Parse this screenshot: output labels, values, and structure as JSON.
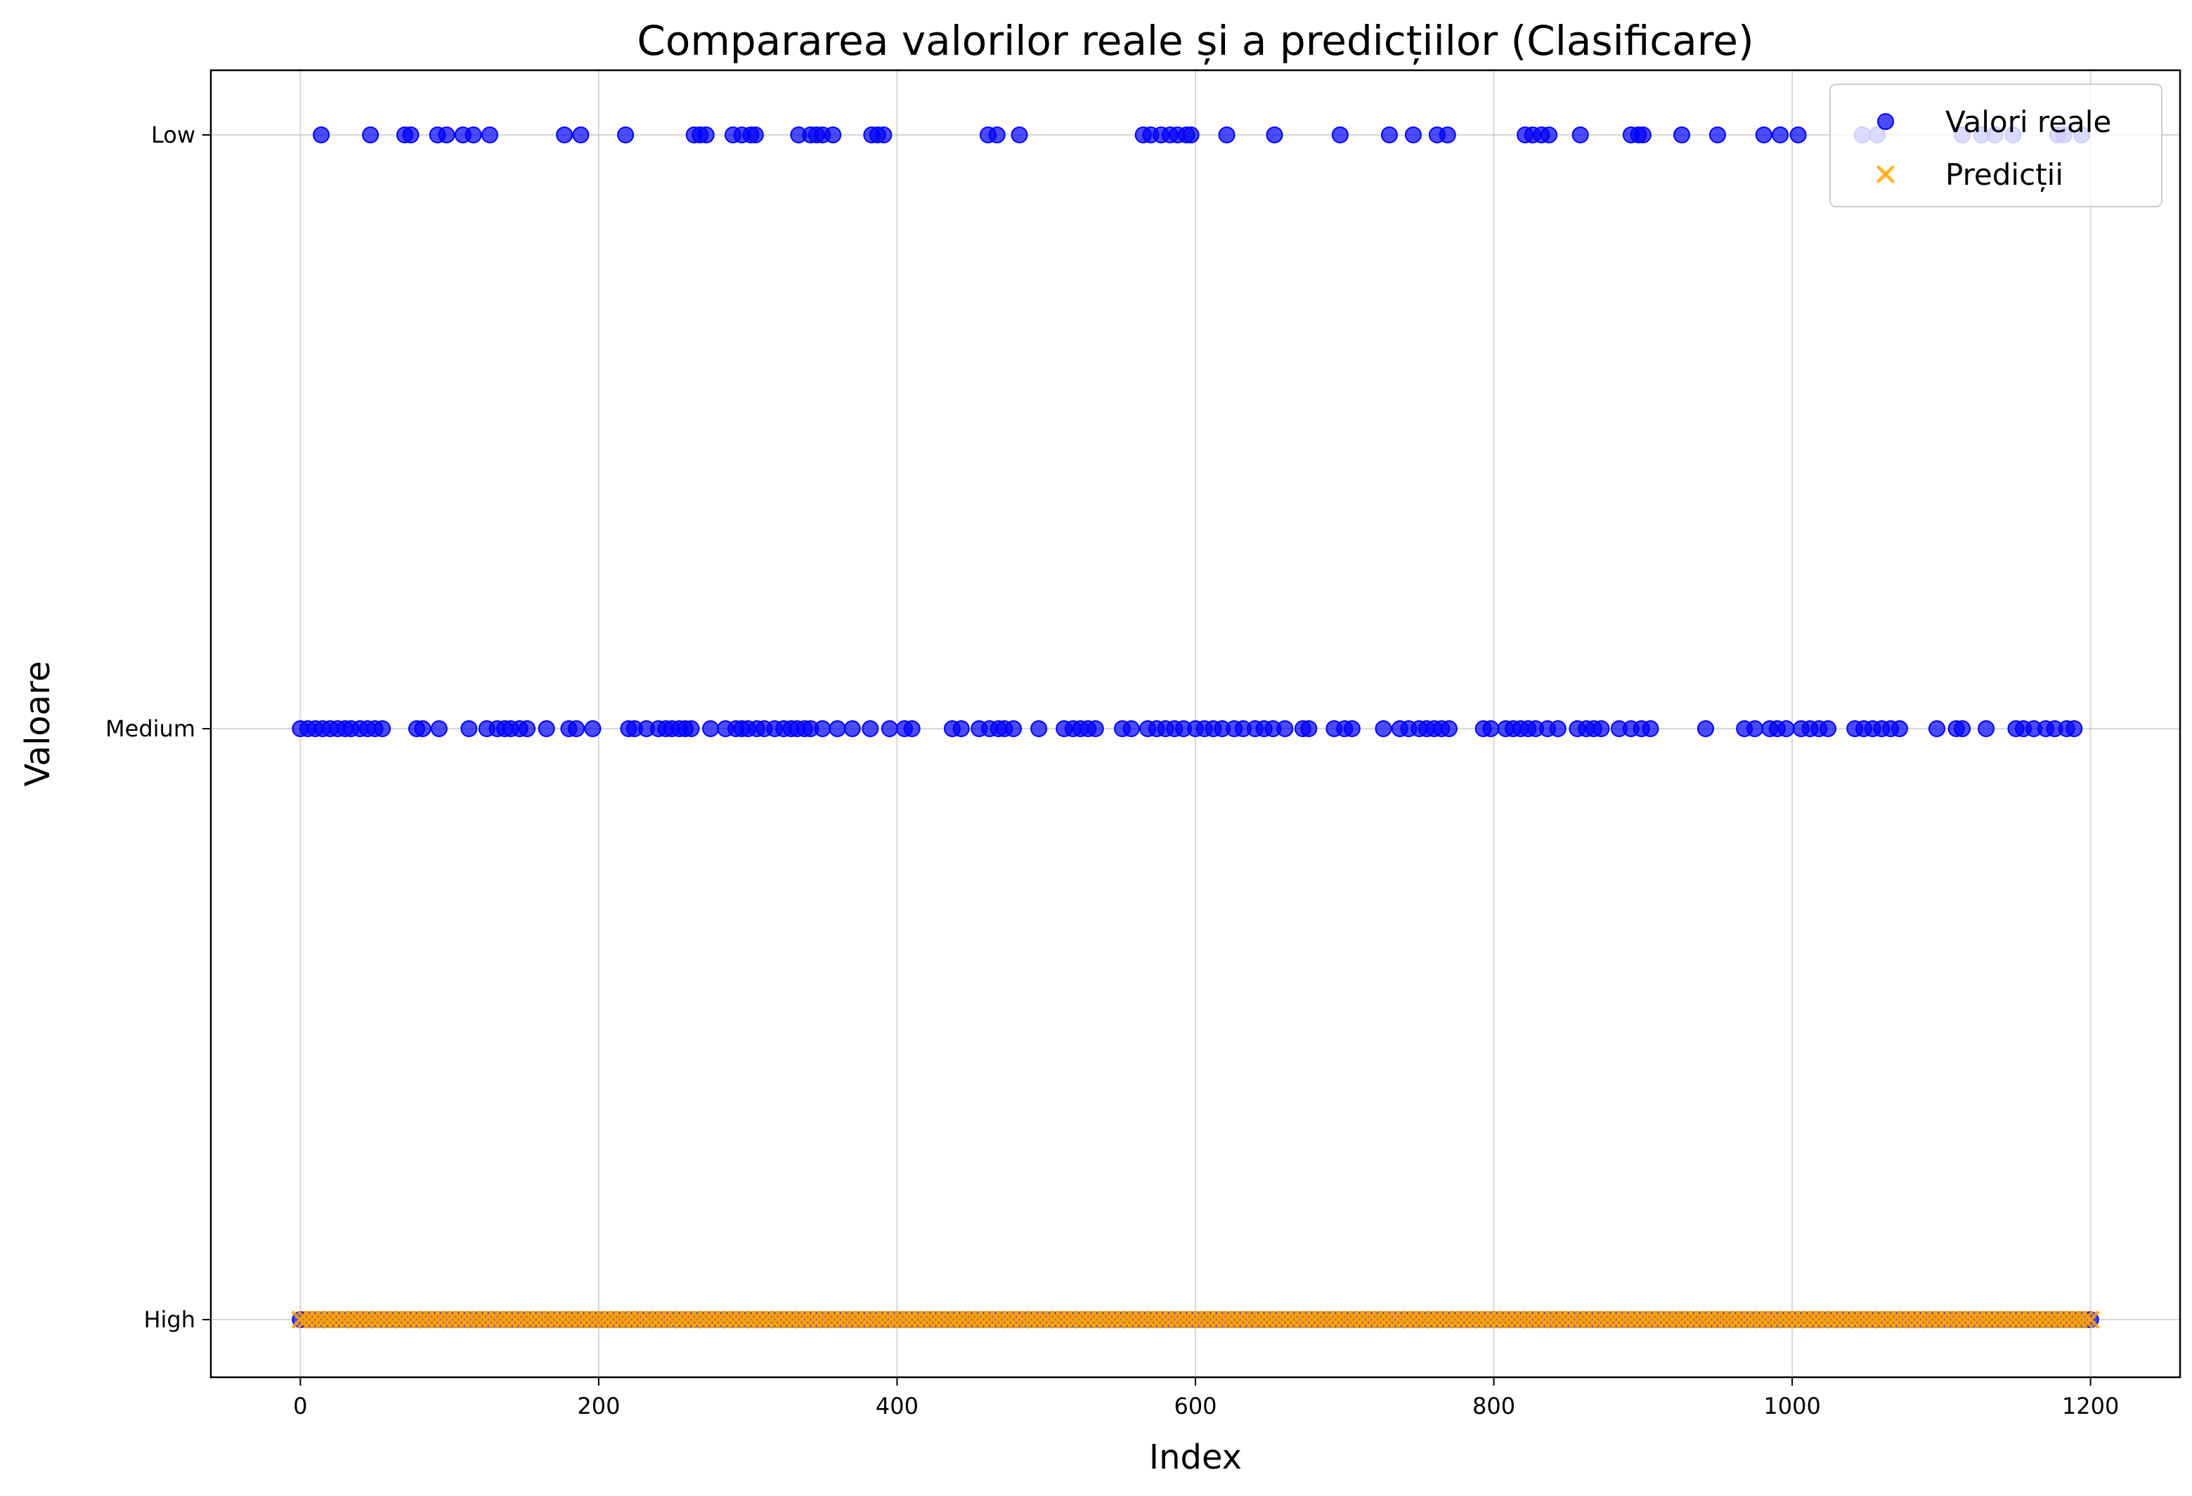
{
  "chart_data": {
    "type": "scatter",
    "title": "Compararea valorilor reale și a predicțiilor (Clasificare)",
    "xlabel": "Index",
    "ylabel": "Valoare",
    "xlim": [
      -60,
      1260
    ],
    "x_ticks": [
      0,
      200,
      400,
      600,
      800,
      1000,
      1200
    ],
    "y_categories": [
      "High",
      "Medium",
      "Low"
    ],
    "grid": true,
    "legend_position": "top-right",
    "colors": {
      "actual": "#0000ff",
      "predicted": "#ffa500"
    },
    "series": [
      {
        "name": "Valori reale",
        "marker": "circle",
        "color": "#0000ff",
        "points_by_category": {
          "Low": [
            14,
            47,
            70,
            74,
            92,
            98,
            109,
            116,
            127,
            177,
            188,
            218,
            264,
            268,
            272,
            290,
            296,
            302,
            305,
            334,
            342,
            346,
            350,
            357,
            383,
            387,
            391,
            461,
            467,
            482,
            565,
            570,
            577,
            583,
            588,
            594,
            597,
            621,
            653,
            697,
            730,
            746,
            762,
            769,
            821,
            826,
            832,
            837,
            858,
            892,
            897,
            900,
            926,
            950,
            981,
            992,
            1004,
            1047,
            1057,
            1114,
            1127,
            1136,
            1148,
            1178,
            1182,
            1194
          ],
          "Medium": [
            0,
            5,
            10,
            15,
            20,
            25,
            30,
            34,
            40,
            45,
            50,
            55,
            78,
            82,
            93,
            113,
            125,
            132,
            137,
            141,
            147,
            152,
            165,
            180,
            185,
            196,
            220,
            224,
            232,
            240,
            245,
            249,
            254,
            258,
            262,
            275,
            285,
            292,
            296,
            300,
            306,
            311,
            318,
            324,
            329,
            333,
            338,
            342,
            350,
            360,
            370,
            382,
            395,
            405,
            410,
            437,
            443,
            455,
            462,
            468,
            472,
            478,
            495,
            512,
            518,
            523,
            528,
            533,
            551,
            557,
            568,
            574,
            580,
            586,
            592,
            600,
            606,
            612,
            618,
            626,
            632,
            640,
            646,
            652,
            660,
            672,
            676,
            693,
            700,
            705,
            726,
            737,
            743,
            750,
            755,
            760,
            765,
            770,
            793,
            798,
            808,
            813,
            818,
            823,
            828,
            836,
            843,
            856,
            862,
            867,
            872,
            884,
            892,
            899,
            905,
            942,
            968,
            975,
            985,
            990,
            996,
            1006,
            1012,
            1018,
            1024,
            1042,
            1048,
            1054,
            1060,
            1066,
            1072,
            1097,
            1110,
            1114,
            1130,
            1150,
            1155,
            1162,
            1170,
            1176,
            1184,
            1189
          ],
          "High": "all indices 0–1200"
        }
      },
      {
        "name": "Predicții",
        "marker": "x",
        "color": "#ffa500",
        "points_by_category": {
          "High": "all indices 0–1200"
        }
      }
    ]
  }
}
